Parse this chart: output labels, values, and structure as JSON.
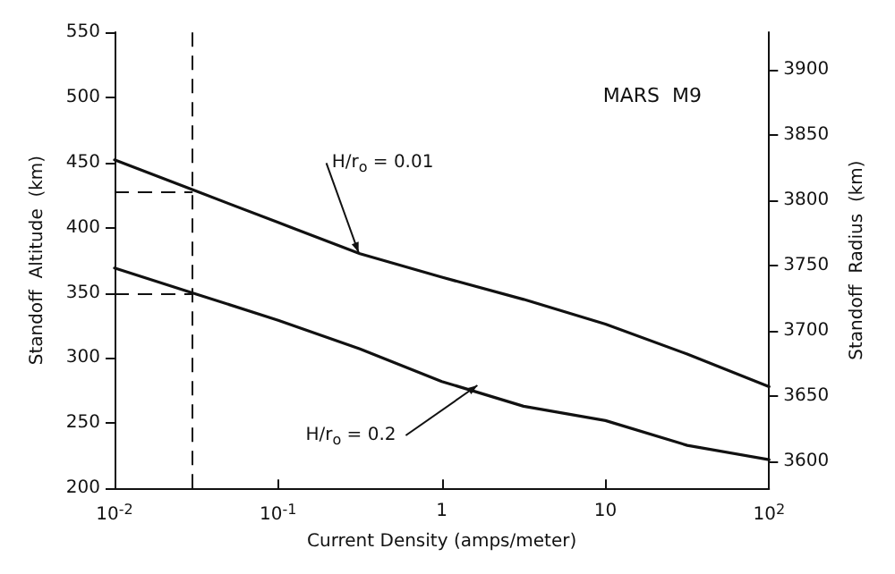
{
  "chart_data": {
    "type": "line",
    "xlabel": "Current Density (amps/meter)",
    "ylabel": "Standoff  Altitude  (km)",
    "y2label": "Standoff  Radius  (km)",
    "x": [
      0.01,
      0.0316,
      0.1,
      0.316,
      1,
      3.16,
      10,
      31.6,
      100
    ],
    "series": [
      {
        "color": "#111111",
        "values": [
          452,
          428,
          404,
          380,
          362,
          345,
          326,
          303,
          278
        ]
      },
      {
        "color": "#111111",
        "values": [
          369,
          349,
          329,
          307,
          282,
          263,
          252,
          233,
          222
        ]
      }
    ],
    "xlim": [
      0.01,
      100
    ],
    "xticks": [
      {
        "value": 0.01,
        "label": "10$^{-2}$"
      },
      {
        "value": 0.1,
        "label": "10$^{-1}$"
      },
      1,
      10,
      {
        "value": 100,
        "label": "10$^{2}$"
      }
    ],
    "ylim": [
      200,
      550
    ],
    "yticks": [
      200,
      250,
      300,
      350,
      400,
      450,
      500,
      550
    ],
    "y2lim": [
      3579,
      3929
    ],
    "y2ticks": [
      3600,
      3650,
      3700,
      3750,
      3800,
      3850,
      3900
    ],
    "log": "x",
    "grid": false,
    "marker": "none",
    "line_style": "solid",
    "ref_lines": [
      {
        "axis": "x",
        "value": 0.03,
        "line_style": "dashed"
      },
      {
        "axis": "y",
        "value": 428,
        "line_style": "dashed"
      },
      {
        "axis": "y",
        "value": 350,
        "line_style": "dashed"
      }
    ],
    "annotations": [
      "MARS  M9",
      {
        "text": "H/r$_{o}$ = 0.01",
        "x": 0.31,
        "y": 381
      },
      {
        "text": "H/r$_{o}$ = 0.2",
        "x": 1.65,
        "y": 279
      }
    ]
  }
}
